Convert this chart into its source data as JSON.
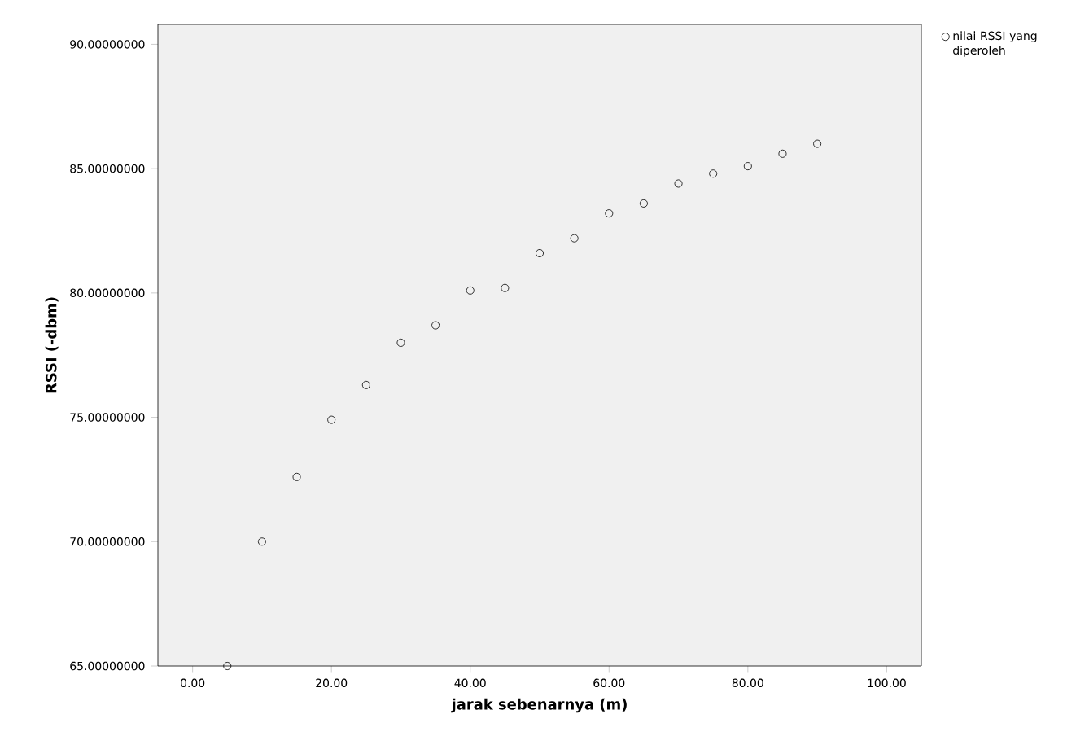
{
  "chart_data": {
    "type": "scatter",
    "xlabel": "jarak sebenarnya (m)",
    "ylabel": "RSSI (-dbm)",
    "x": [
      5,
      10,
      15,
      20,
      25,
      30,
      35,
      40,
      45,
      50,
      55,
      60,
      65,
      70,
      75,
      80,
      85,
      90
    ],
    "series": [
      {
        "name": "nilai RSSI yang diperoleh",
        "color": "#000000",
        "values": [
          65.0,
          70.0,
          72.6,
          74.9,
          76.3,
          78.0,
          78.7,
          80.1,
          80.2,
          81.6,
          82.2,
          83.2,
          83.6,
          84.4,
          84.8,
          85.1,
          85.6,
          86.0
        ]
      }
    ],
    "xlim": [
      -5,
      105
    ],
    "ylim": [
      65,
      90.8
    ],
    "xticks": [
      {
        "value": 0,
        "label": "0.00"
      },
      {
        "value": 20,
        "label": "20.00"
      },
      {
        "value": 40,
        "label": "40.00"
      },
      {
        "value": 60,
        "label": "60.00"
      },
      {
        "value": 80,
        "label": "80.00"
      },
      {
        "value": 100,
        "label": "100.00"
      }
    ],
    "yticks": [
      {
        "value": 65,
        "label": "65.00000000"
      },
      {
        "value": 70,
        "label": "70.00000000"
      },
      {
        "value": 75,
        "label": "75.00000000"
      },
      {
        "value": 80,
        "label": "80.00000000"
      },
      {
        "value": 85,
        "label": "85.00000000"
      },
      {
        "value": 90,
        "label": "90.00000000"
      }
    ],
    "legend": "right",
    "marker": "circle",
    "grid": false
  }
}
